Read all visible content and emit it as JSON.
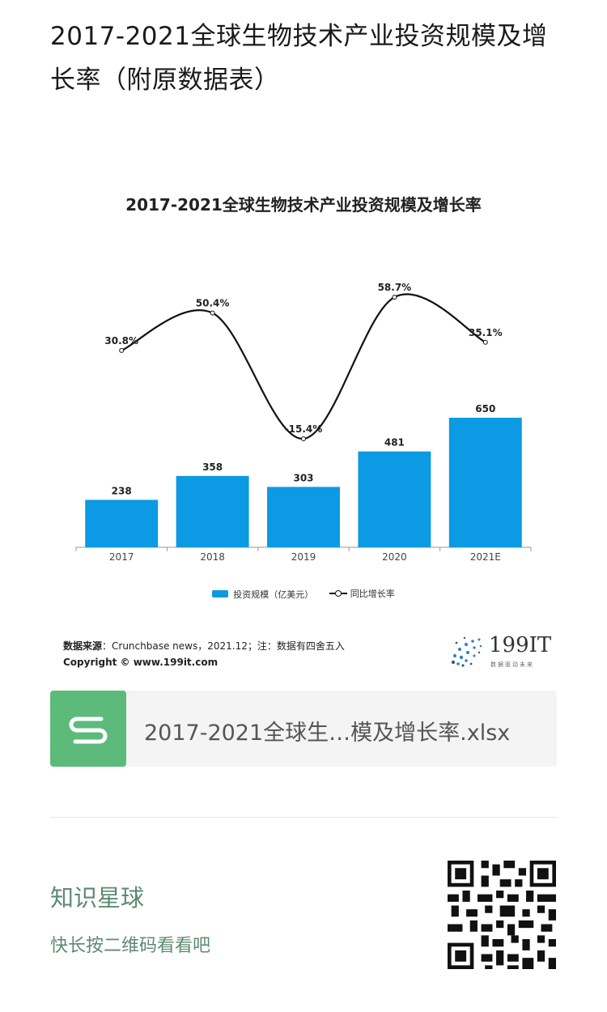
{
  "article": {
    "title": "2017-2021全球生物技术产业投资规模及增长率（附原数据表）"
  },
  "chart_data": {
    "type": "bar",
    "title": "2017-2021全球生物技术产业投资规模及增长率",
    "categories": [
      "2017",
      "2018",
      "2019",
      "2020",
      "2021E"
    ],
    "series": [
      {
        "name": "投资规模（亿美元）",
        "kind": "bar",
        "values": [
          238,
          358,
          303,
          481,
          650
        ],
        "labels": [
          "238",
          "358",
          "303",
          "481",
          "650"
        ],
        "color": "#0b9ae3"
      },
      {
        "name": "同比增长率",
        "kind": "line",
        "values": [
          30.8,
          50.4,
          -15.4,
          58.7,
          35.1
        ],
        "labels": [
          "30.8%",
          "50.4%",
          "-15.4%",
          "58.7%",
          "35.1%"
        ],
        "color": "#111111"
      }
    ],
    "legend_position": "bottom",
    "grid": false
  },
  "source": {
    "label": "数据来源",
    "text": "：Crunchbase news，2021.12；注：数据有四舍五入",
    "copyright": "Copyright © www.199it.com"
  },
  "logo": {
    "brand": "199IT",
    "slogan": "数据驱动未来"
  },
  "attachment": {
    "file_name": "2017-2021全球生…模及增长率.xlsx",
    "icon": "spreadsheet-s-icon",
    "icon_color": "#5cbb7a"
  },
  "knowledge_planet": {
    "title": "知识星球",
    "subtitle": "快长按二维码看看吧",
    "accent": "#5d8a72"
  }
}
